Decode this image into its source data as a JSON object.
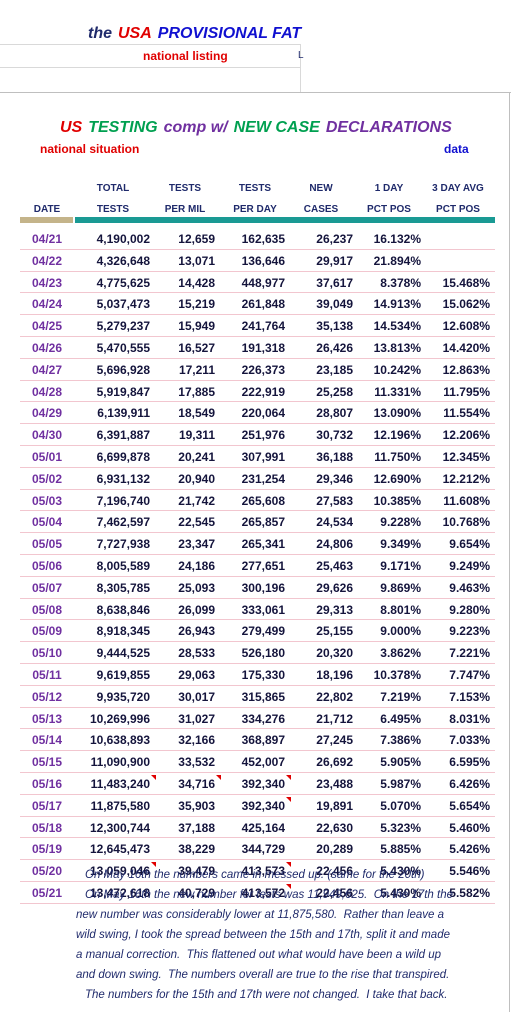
{
  "header": {
    "title_parts": [
      {
        "text": "the",
        "color": "#1f2a6b"
      },
      {
        "text": "USA",
        "color": "#e00000"
      },
      {
        "text": "PROVISIONAL FAT",
        "color": "#1010d0"
      }
    ],
    "subtitle": "national listing",
    "side_label": "L"
  },
  "sheet": {
    "title_parts": [
      {
        "text": "US",
        "color": "#e00000"
      },
      {
        "text": "TESTING",
        "color": "#00a050"
      },
      {
        "text": "comp w/",
        "color": "#7030a0"
      },
      {
        "text": "NEW CASE",
        "color": "#00a050"
      },
      {
        "text": "DECLARATIONS",
        "color": "#7030a0"
      }
    ],
    "left_label": "national situation",
    "right_label": "data"
  },
  "table": {
    "header_top": [
      "TOTAL",
      "TESTS",
      "TESTS",
      "NEW",
      "1 DAY",
      "3 DAY AVG"
    ],
    "header_bottom": [
      "DATE",
      "TESTS",
      "PER MIL",
      "PER DAY",
      "CASES",
      "PCT POS",
      "PCT POS"
    ],
    "rows": [
      [
        "04/21",
        "4,190,002",
        "12,659",
        "162,635",
        "26,237",
        "16.132%"
      ],
      [
        "04/22",
        "4,326,648",
        "13,071",
        "136,646",
        "29,917",
        "21.894%"
      ],
      [
        "04/23",
        "4,775,625",
        "14,428",
        "448,977",
        "37,617",
        "8.378%",
        "15.468%"
      ],
      [
        "04/24",
        "5,037,473",
        "15,219",
        "261,848",
        "39,049",
        "14.913%",
        "15.062%"
      ],
      [
        "04/25",
        "5,279,237",
        "15,949",
        "241,764",
        "35,138",
        "14.534%",
        "12.608%"
      ],
      [
        "04/26",
        "5,470,555",
        "16,527",
        "191,318",
        "26,426",
        "13.813%",
        "14.420%"
      ],
      [
        "04/27",
        "5,696,928",
        "17,211",
        "226,373",
        "23,185",
        "10.242%",
        "12.863%"
      ],
      [
        "04/28",
        "5,919,847",
        "17,885",
        "222,919",
        "25,258",
        "11.331%",
        "11.795%"
      ],
      [
        "04/29",
        "6,139,911",
        "18,549",
        "220,064",
        "28,807",
        "13.090%",
        "11.554%"
      ],
      [
        "04/30",
        "6,391,887",
        "19,311",
        "251,976",
        "30,732",
        "12.196%",
        "12.206%"
      ],
      [
        "05/01",
        "6,699,878",
        "20,241",
        "307,991",
        "36,188",
        "11.750%",
        "12.345%"
      ],
      [
        "05/02",
        "6,931,132",
        "20,940",
        "231,254",
        "29,346",
        "12.690%",
        "12.212%"
      ],
      [
        "05/03",
        "7,196,740",
        "21,742",
        "265,608",
        "27,583",
        "10.385%",
        "11.608%"
      ],
      [
        "05/04",
        "7,462,597",
        "22,545",
        "265,857",
        "24,534",
        "9.228%",
        "10.768%"
      ],
      [
        "05/05",
        "7,727,938",
        "23,347",
        "265,341",
        "24,806",
        "9.349%",
        "9.654%"
      ],
      [
        "05/06",
        "8,005,589",
        "24,186",
        "277,651",
        "25,463",
        "9.171%",
        "9.249%"
      ],
      [
        "05/07",
        "8,305,785",
        "25,093",
        "300,196",
        "29,626",
        "9.869%",
        "9.463%"
      ],
      [
        "05/08",
        "8,638,846",
        "26,099",
        "333,061",
        "29,313",
        "8.801%",
        "9.280%"
      ],
      [
        "05/09",
        "8,918,345",
        "26,943",
        "279,499",
        "25,155",
        "9.000%",
        "9.223%"
      ],
      [
        "05/10",
        "9,444,525",
        "28,533",
        "526,180",
        "20,320",
        "3.862%",
        "7.221%"
      ],
      [
        "05/11",
        "9,619,855",
        "29,063",
        "175,330",
        "18,196",
        "10.378%",
        "7.747%"
      ],
      [
        "05/12",
        "9,935,720",
        "30,017",
        "315,865",
        "22,802",
        "7.219%",
        "7.153%"
      ],
      [
        "05/13",
        "10,269,996",
        "31,027",
        "334,276",
        "21,712",
        "6.495%",
        "8.031%"
      ],
      [
        "05/14",
        "10,638,893",
        "32,166",
        "368,897",
        "27,245",
        "7.386%",
        "7.033%"
      ],
      [
        "05/15",
        "11,090,900",
        "33,532",
        "452,007",
        "26,692",
        "5.905%",
        "6.595%"
      ],
      [
        "05/16",
        "11,483,240",
        "34,716",
        "392,340",
        "23,488",
        "5.987%",
        "6.426%"
      ],
      [
        "05/17",
        "11,875,580",
        "35,903",
        "392,340",
        "19,891",
        "5.070%",
        "5.654%"
      ],
      [
        "05/18",
        "12,300,744",
        "37,188",
        "425,164",
        "22,630",
        "5.323%",
        "5.460%"
      ],
      [
        "05/19",
        "12,645,473",
        "38,229",
        "344,729",
        "20,289",
        "5.885%",
        "5.426%"
      ],
      [
        "05/20",
        "13,059,046",
        "39,479",
        "413,573",
        "22,456",
        "5.430%",
        "5.546%"
      ],
      [
        "05/21",
        "13,472,618",
        "40,729",
        "413,572",
        "22,456",
        "5.430%",
        "5.582%"
      ]
    ]
  },
  "notes": [
    "On May 16th the numbers came in messed up. (same for the 20th)",
    "On May 16th the new number for tests was 11,949,625.  On the 17th the",
    "new number was considerably lower at 11,875,580.  Rather than leave a",
    "wild swing, I took the spread between the 15th and 17th, split it and made",
    "a manual correction.  This flattened out what would have been a wild up",
    "and down swing.  The numbers overall are true to the rise that transpired.",
    "The numbers for the 15th and 17th were not changed.  I take that back."
  ]
}
